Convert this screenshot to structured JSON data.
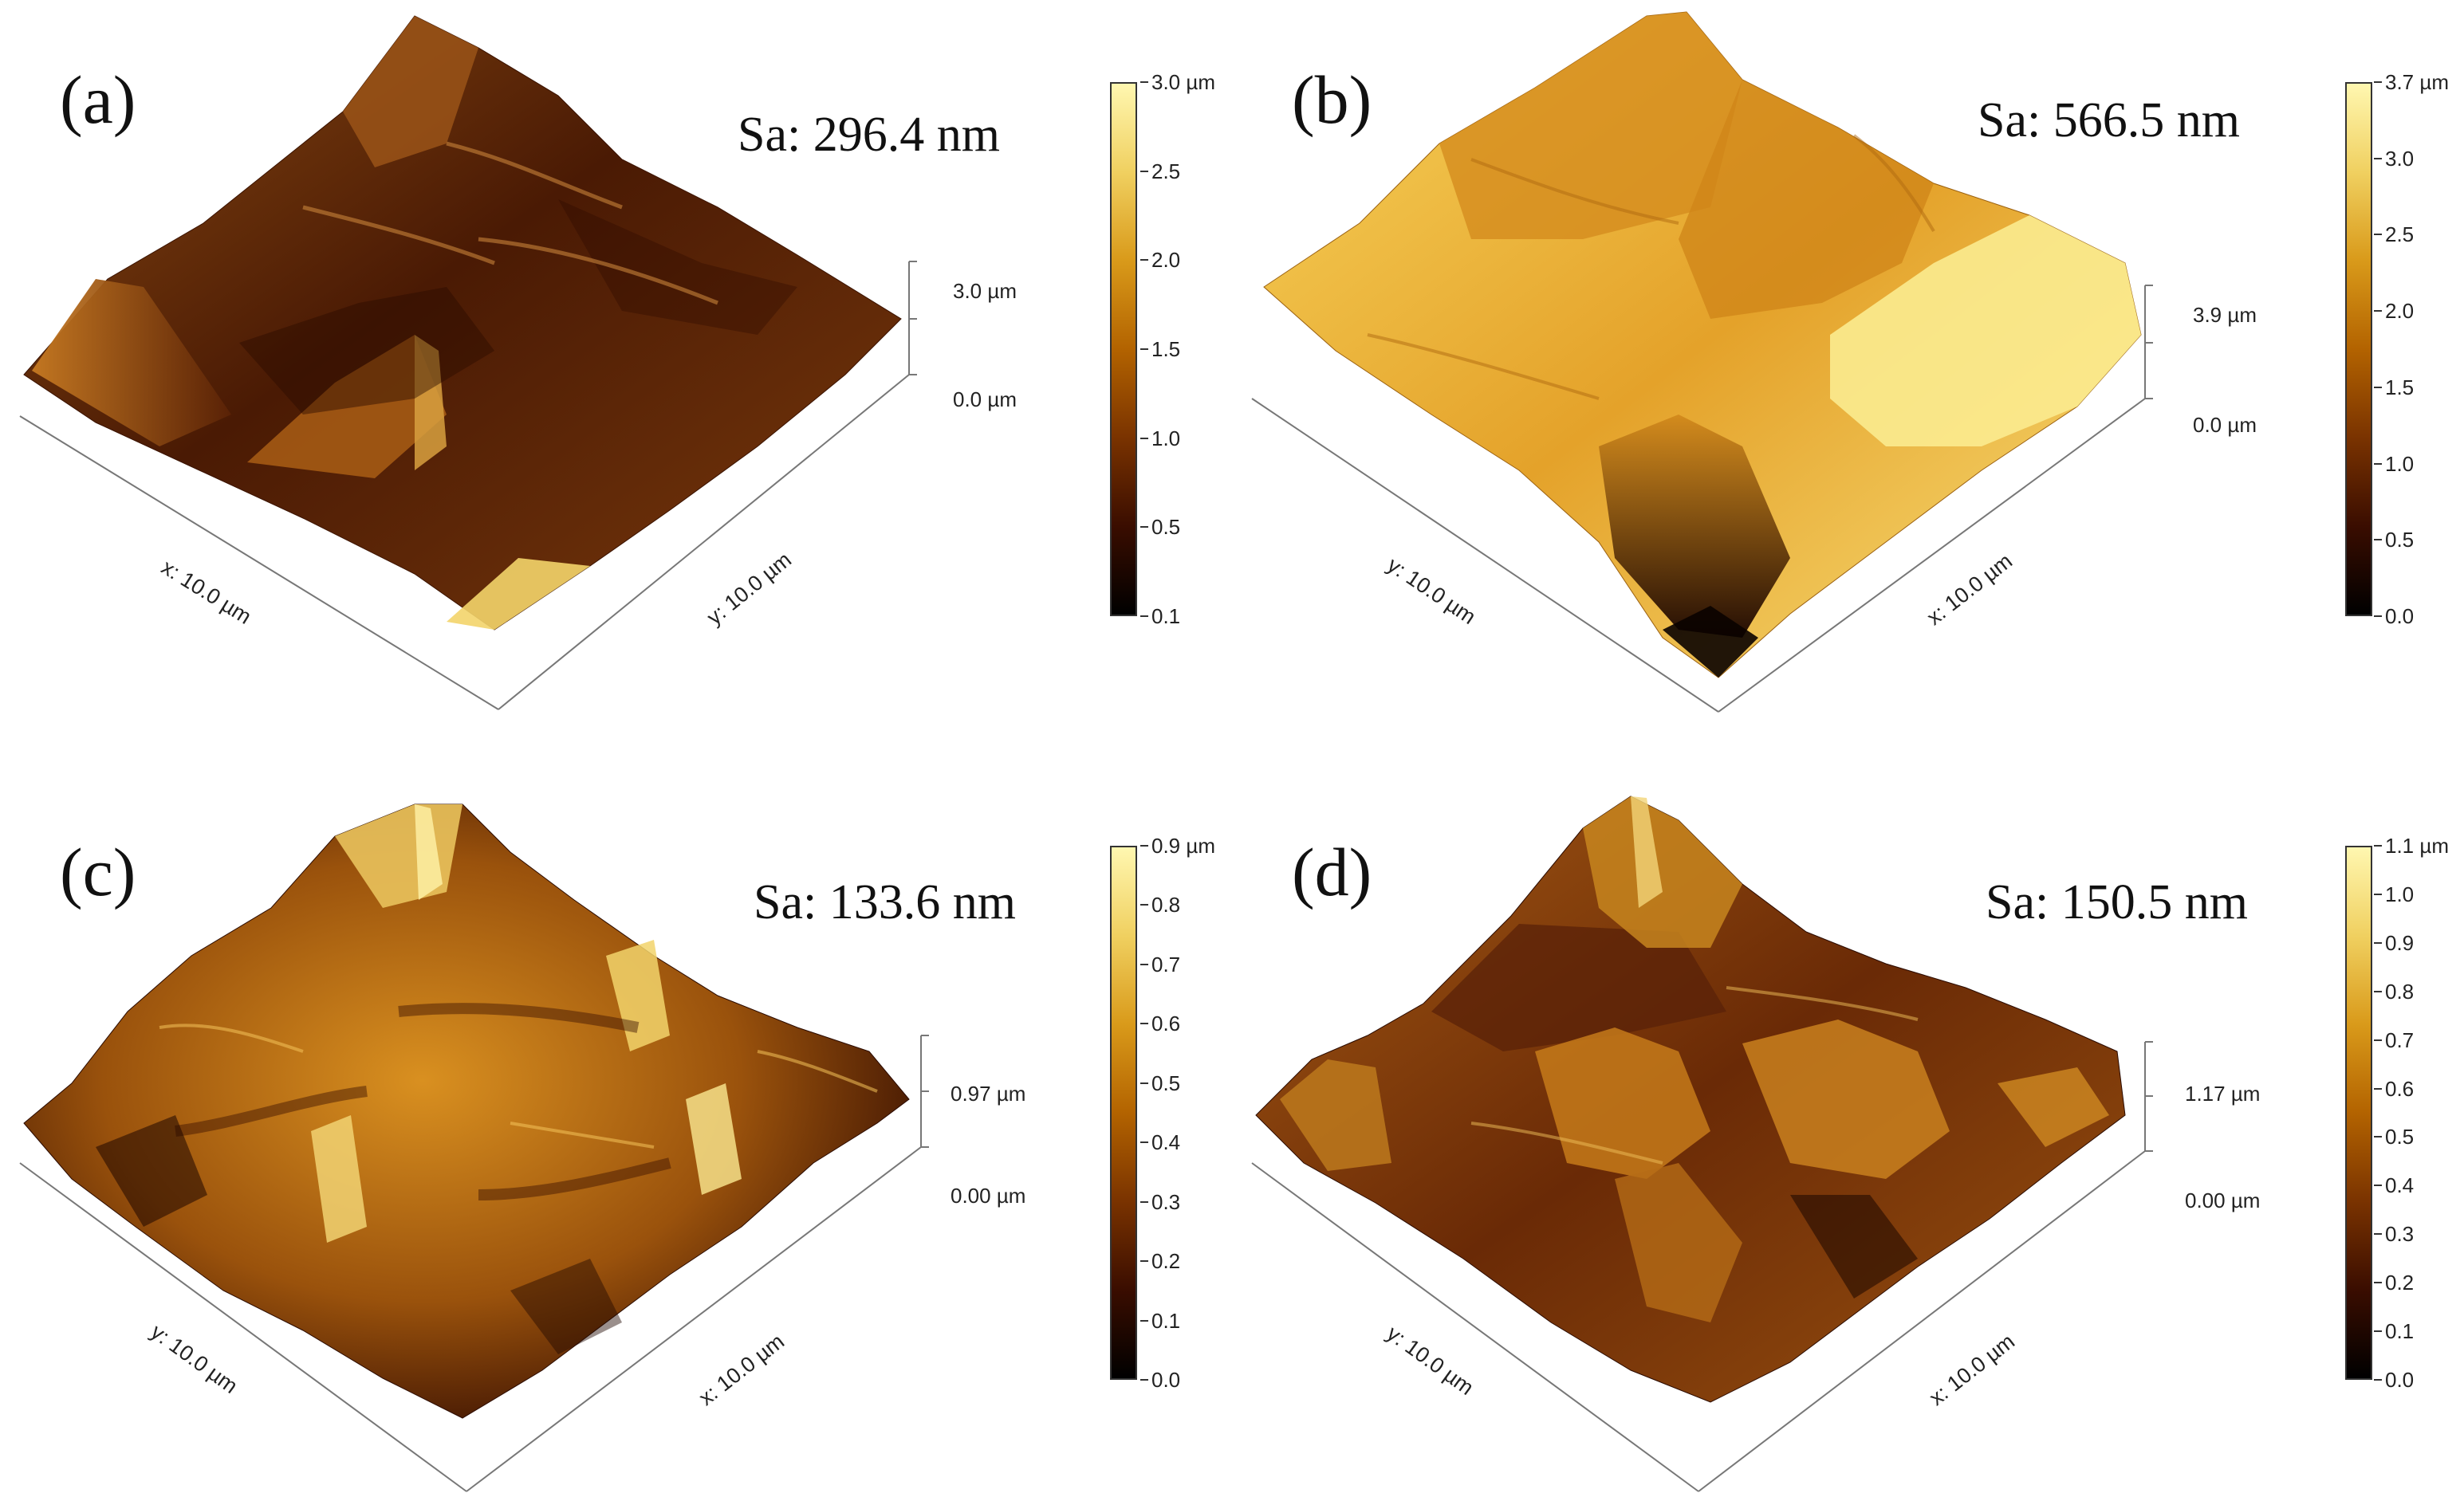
{
  "panels": [
    {
      "id": "a",
      "label": "(a)",
      "sa": "Sa: 296.4 nm",
      "z_top": "3.0 µm",
      "z_bottom": "0.0 µm",
      "axis_left": "x: 10.0 µm",
      "axis_right": "y: 10.0 µm",
      "colorbar_ticks": [
        "3.0 µm",
        "2.5",
        "2.0",
        "1.5",
        "1.0",
        "0.5",
        "0.1"
      ],
      "surface_style": "dark-brown"
    },
    {
      "id": "b",
      "label": "(b)",
      "sa": "Sa: 566.5 nm",
      "z_top": "3.9 µm",
      "z_bottom": "0.0 µm",
      "axis_left": "y: 10.0 µm",
      "axis_right": "x: 10.0 µm",
      "colorbar_ticks": [
        "3.7 µm",
        "3.0",
        "2.5",
        "2.0",
        "1.5",
        "1.0",
        "0.5",
        "0.0"
      ],
      "surface_style": "bright-gold"
    },
    {
      "id": "c",
      "label": "(c)",
      "sa": "Sa: 133.6 nm",
      "z_top": "0.97 µm",
      "z_bottom": "0.00 µm",
      "axis_left": "y: 10.0 µm",
      "axis_right": "x: 10.0 µm",
      "colorbar_ticks": [
        "0.9 µm",
        "0.8",
        "0.7",
        "0.6",
        "0.5",
        "0.4",
        "0.3",
        "0.2",
        "0.1",
        "0.0"
      ],
      "surface_style": "rough-amber"
    },
    {
      "id": "d",
      "label": "(d)",
      "sa": "Sa: 150.5 nm",
      "z_top": "1.17 µm",
      "z_bottom": "0.00 µm",
      "axis_left": "y: 10.0 µm",
      "axis_right": "x: 10.0 µm",
      "colorbar_ticks": [
        "1.1 µm",
        "1.0",
        "0.9",
        "0.8",
        "0.7",
        "0.6",
        "0.5",
        "0.4",
        "0.3",
        "0.2",
        "0.1",
        "0.0"
      ],
      "surface_style": "mixed-brown"
    }
  ],
  "colormap": [
    "#000000",
    "#3a0d00",
    "#7a3300",
    "#b36300",
    "#d99a1a",
    "#f0d060",
    "#fff7b0"
  ]
}
